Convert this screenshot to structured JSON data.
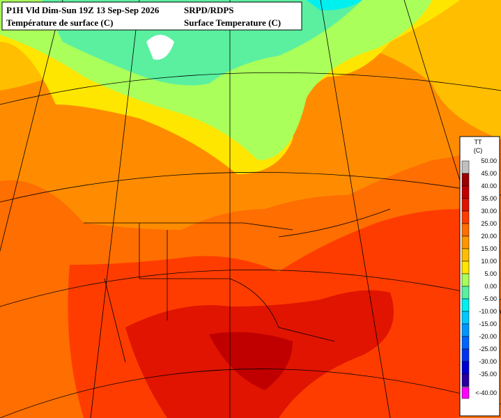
{
  "header": {
    "left": [
      "P1H Vld Dim-Sun 19Z 13 Sep-Sep 2026",
      "Température de surface (C)"
    ],
    "right": [
      "SRPD/RDPS",
      "Surface Temperature (C)"
    ]
  },
  "legend": {
    "title": "TT",
    "unit": "(C)",
    "items": [
      {
        "label": "50.00",
        "color": "#c0c0c0"
      },
      {
        "label": "45.00",
        "color": "#9b0000"
      },
      {
        "label": "40.00",
        "color": "#c00000"
      },
      {
        "label": "35.00",
        "color": "#e01400"
      },
      {
        "label": "30.00",
        "color": "#ff3c00"
      },
      {
        "label": "25.00",
        "color": "#ff6e00"
      },
      {
        "label": "20.00",
        "color": "#ff9600"
      },
      {
        "label": "15.00",
        "color": "#ffbe00"
      },
      {
        "label": "10.00",
        "color": "#ffe600"
      },
      {
        "label": "5.00",
        "color": "#aaff5a"
      },
      {
        "label": "0.00",
        "color": "#5af0a0"
      },
      {
        "label": "-5.00",
        "color": "#00f0f0"
      },
      {
        "label": "-10.00",
        "color": "#00c8ff"
      },
      {
        "label": "-15.00",
        "color": "#0096ff"
      },
      {
        "label": "-20.00",
        "color": "#0064ff"
      },
      {
        "label": "-25.00",
        "color": "#0032f0"
      },
      {
        "label": "-30.00",
        "color": "#0000d2"
      },
      {
        "label": "-35.00",
        "color": "#2800a0"
      },
      {
        "label": "<-40.00",
        "color": "#ff00ff"
      }
    ]
  }
}
